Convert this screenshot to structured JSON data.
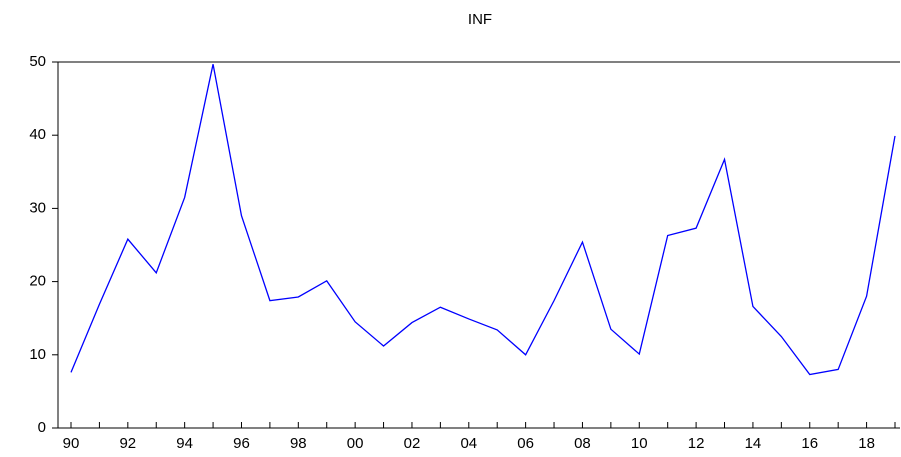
{
  "chart_data": {
    "type": "line",
    "title": "INF",
    "categories": [
      "90",
      null,
      "92",
      null,
      "94",
      null,
      "96",
      null,
      "98",
      null,
      "00",
      null,
      "02",
      null,
      "04",
      null,
      "06",
      null,
      "08",
      null,
      "10",
      null,
      "12",
      null,
      "14",
      null,
      "16",
      null,
      "18",
      null
    ],
    "series": [
      {
        "name": "INF",
        "color": "#0000ff",
        "values": [
          7.6,
          16.9,
          25.8,
          21.2,
          31.5,
          49.7,
          29.0,
          17.4,
          17.9,
          20.1,
          14.5,
          11.2,
          14.4,
          16.5,
          14.9,
          13.4,
          10.0,
          17.4,
          25.4,
          13.5,
          10.1,
          26.3,
          27.3,
          36.7,
          16.6,
          12.5,
          7.3,
          8.0,
          18.0,
          39.9
        ]
      }
    ],
    "ylim": [
      0,
      50
    ],
    "yticks": [
      0,
      10,
      20,
      30,
      40,
      50
    ],
    "grid": false
  }
}
